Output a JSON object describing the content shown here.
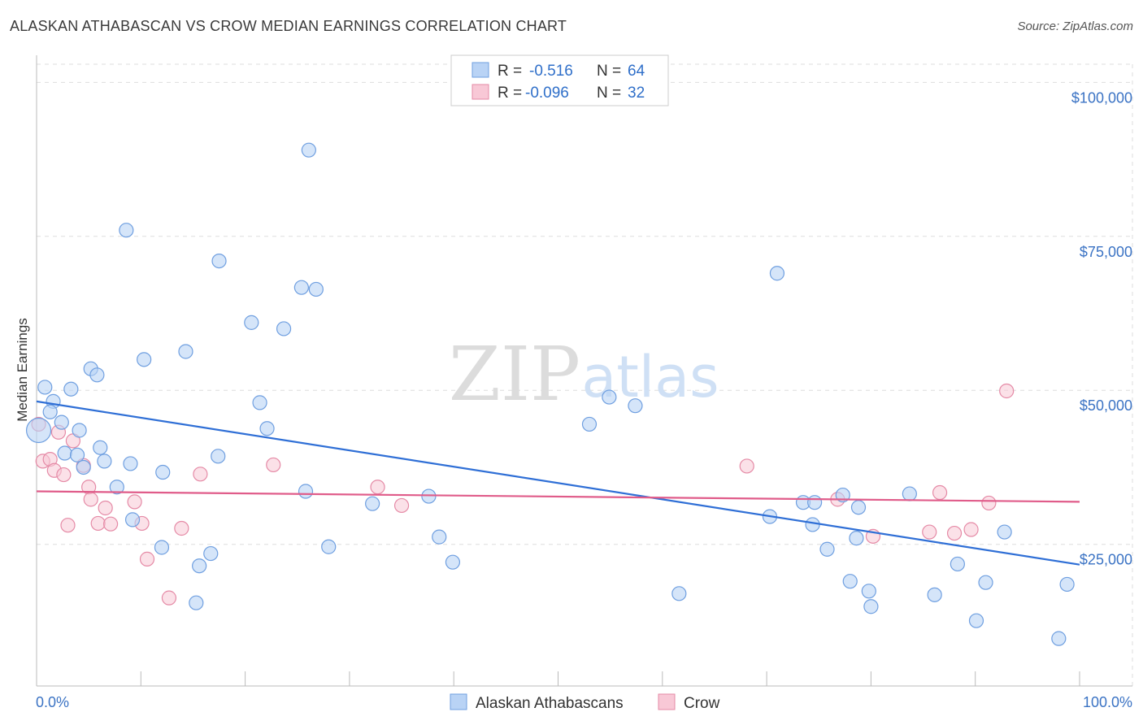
{
  "title": "ALASKAN ATHABASCAN VS CROW MEDIAN EARNINGS CORRELATION CHART",
  "source": "Source: ZipAtlas.com",
  "watermark": {
    "part1": "ZIP",
    "part2": "atlas"
  },
  "colors": {
    "blue_fill": "#b9d3f5",
    "blue_stroke": "#6f9fe0",
    "blue_line": "#2f6fd6",
    "pink_fill": "#f8c8d6",
    "pink_stroke": "#e58aa6",
    "pink_line": "#e05c8a",
    "tick_label": "#3b73c4",
    "grid": "#dddddd"
  },
  "legend": {
    "rows": [
      {
        "r_label": "R =",
        "r_value": "-0.516",
        "n_label": "N =",
        "n_value": "64"
      },
      {
        "r_label": "R =",
        "r_value": "-0.096",
        "n_label": "N =",
        "n_value": "32"
      }
    ]
  },
  "chart_data": {
    "type": "scatter",
    "title": "ALASKAN ATHABASCAN VS CROW MEDIAN EARNINGS CORRELATION CHART",
    "xlabel": "",
    "ylabel": "Median Earnings",
    "xlim": [
      0,
      100
    ],
    "ylim": [
      2000,
      104000
    ],
    "x_tick_labels": [
      "0.0%",
      "100.0%"
    ],
    "y_ticks": [
      25000,
      50000,
      75000,
      100000
    ],
    "y_tick_labels": [
      "$25,000",
      "$50,000",
      "$75,000",
      "$100,000"
    ],
    "series": [
      {
        "name": "Alaskan Athabascans",
        "r": -0.516,
        "n": 64,
        "trend": {
          "x0": 0,
          "y0": 48200,
          "x1": 100,
          "y1": 21700
        },
        "points": [
          [
            0.2,
            43500
          ],
          [
            0.8,
            50500
          ],
          [
            1.6,
            48200
          ],
          [
            1.3,
            46500
          ],
          [
            2.4,
            44800
          ],
          [
            2.7,
            39800
          ],
          [
            3.3,
            50200
          ],
          [
            4.1,
            43500
          ],
          [
            3.9,
            39500
          ],
          [
            4.5,
            37500
          ],
          [
            5.2,
            53500
          ],
          [
            5.8,
            52500
          ],
          [
            6.1,
            40700
          ],
          [
            6.5,
            38500
          ],
          [
            7.7,
            34300
          ],
          [
            8.6,
            76000
          ],
          [
            9.0,
            38100
          ],
          [
            9.2,
            29000
          ],
          [
            10.3,
            55000
          ],
          [
            12.1,
            36700
          ],
          [
            12.0,
            24500
          ],
          [
            14.3,
            56300
          ],
          [
            15.6,
            21500
          ],
          [
            15.3,
            15500
          ],
          [
            16.7,
            23500
          ],
          [
            17.4,
            39300
          ],
          [
            17.5,
            71000
          ],
          [
            20.6,
            61000
          ],
          [
            21.4,
            48000
          ],
          [
            22.1,
            43800
          ],
          [
            23.7,
            60000
          ],
          [
            25.4,
            66700
          ],
          [
            25.8,
            33600
          ],
          [
            26.1,
            89000
          ],
          [
            26.8,
            66400
          ],
          [
            28.0,
            24600
          ],
          [
            32.2,
            31600
          ],
          [
            37.6,
            32800
          ],
          [
            38.6,
            26200
          ],
          [
            39.9,
            22100
          ],
          [
            53.0,
            44500
          ],
          [
            54.9,
            48900
          ],
          [
            57.4,
            47500
          ],
          [
            61.6,
            17000
          ],
          [
            71.0,
            69000
          ],
          [
            70.3,
            29500
          ],
          [
            73.5,
            31800
          ],
          [
            74.6,
            31800
          ],
          [
            74.4,
            28200
          ],
          [
            75.8,
            24200
          ],
          [
            77.3,
            33000
          ],
          [
            78.0,
            19000
          ],
          [
            78.8,
            31000
          ],
          [
            78.6,
            26000
          ],
          [
            79.8,
            17400
          ],
          [
            80.0,
            14900
          ],
          [
            83.7,
            33200
          ],
          [
            86.1,
            16800
          ],
          [
            88.3,
            21800
          ],
          [
            90.1,
            12600
          ],
          [
            91.0,
            18800
          ],
          [
            92.8,
            27000
          ],
          [
            98.0,
            9700
          ],
          [
            98.8,
            18500
          ]
        ]
      },
      {
        "name": "Crow",
        "r": -0.096,
        "n": 32,
        "trend": {
          "x0": 0,
          "y0": 33600,
          "x1": 100,
          "y1": 31900
        },
        "points": [
          [
            0.2,
            44500
          ],
          [
            0.6,
            38500
          ],
          [
            1.3,
            38800
          ],
          [
            1.7,
            37000
          ],
          [
            2.1,
            43200
          ],
          [
            2.6,
            36300
          ],
          [
            3.0,
            28100
          ],
          [
            3.5,
            41800
          ],
          [
            4.5,
            37800
          ],
          [
            5.0,
            34300
          ],
          [
            5.2,
            32300
          ],
          [
            5.9,
            28400
          ],
          [
            6.6,
            30900
          ],
          [
            7.1,
            28300
          ],
          [
            9.4,
            31900
          ],
          [
            10.1,
            28400
          ],
          [
            10.6,
            22600
          ],
          [
            12.7,
            16300
          ],
          [
            13.9,
            27600
          ],
          [
            15.7,
            36400
          ],
          [
            22.7,
            37900
          ],
          [
            32.7,
            34300
          ],
          [
            35.0,
            31300
          ],
          [
            68.1,
            37700
          ],
          [
            76.8,
            32300
          ],
          [
            80.2,
            26300
          ],
          [
            85.6,
            27000
          ],
          [
            86.6,
            33400
          ],
          [
            88.0,
            26800
          ],
          [
            89.6,
            27400
          ],
          [
            91.3,
            31700
          ],
          [
            93.0,
            49900
          ]
        ]
      }
    ]
  }
}
